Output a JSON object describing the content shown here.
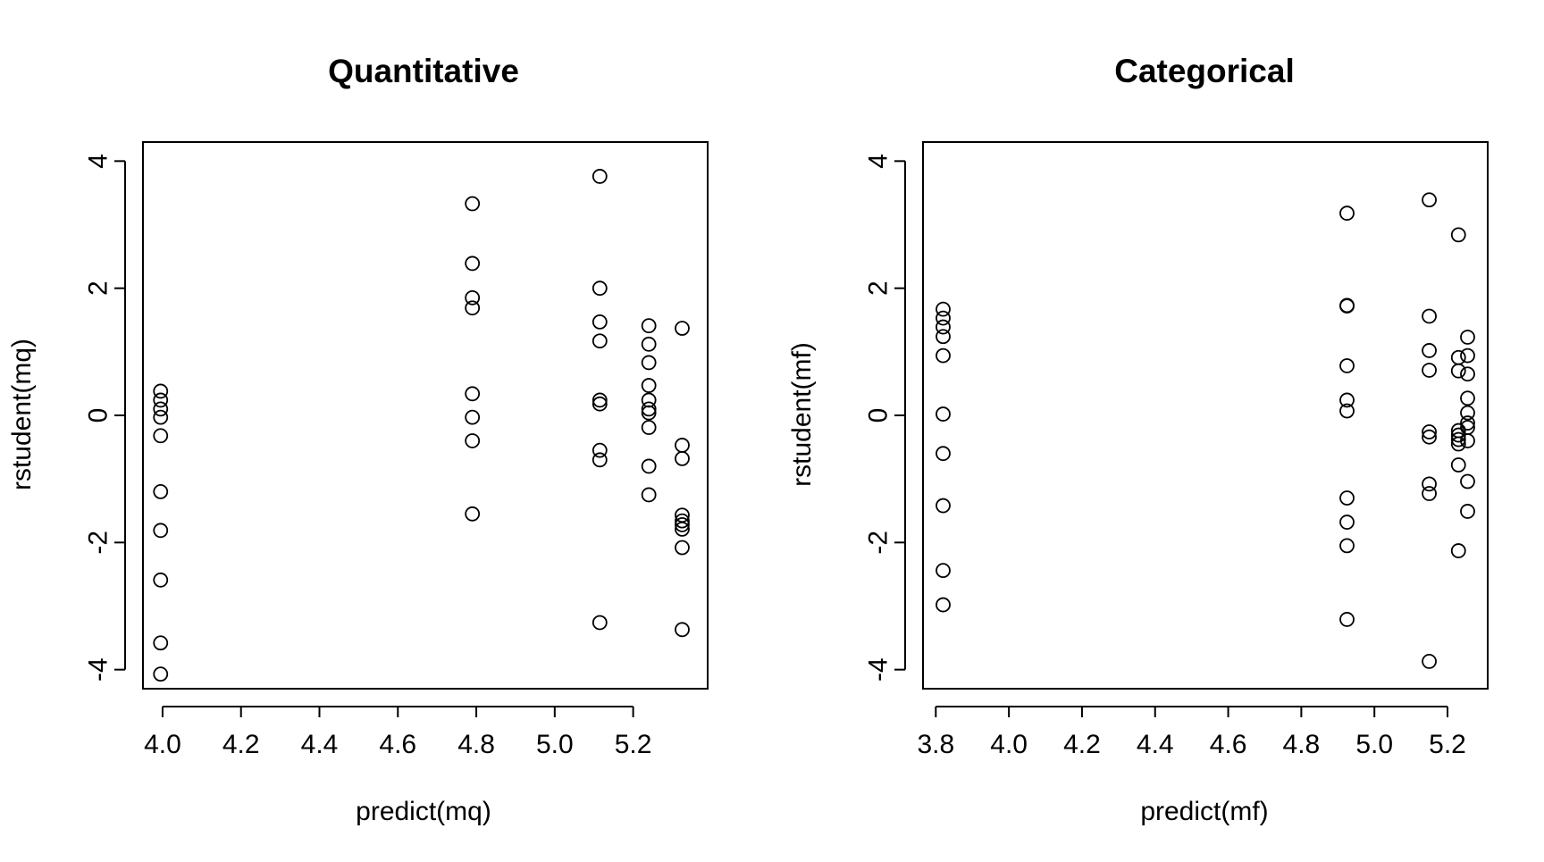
{
  "chart_data": [
    {
      "type": "scatter",
      "title": "Quantitative",
      "xlabel": "predict(mq)",
      "ylabel": "rstudent(mq)",
      "xlim": [
        3.95,
        5.39
      ],
      "ylim": [
        -4.3,
        4.3
      ],
      "xticks": [
        4.0,
        4.2,
        4.4,
        4.6,
        4.8,
        5.0,
        5.2
      ],
      "xtick_labels": [
        "4.0",
        "4.2",
        "4.4",
        "4.6",
        "4.8",
        "5.0",
        "5.2"
      ],
      "yticks": [
        -4,
        -2,
        0,
        2,
        4
      ],
      "ytick_labels": [
        "-4",
        "-2",
        "0",
        "2",
        "4"
      ],
      "grid": false,
      "legend": "none",
      "marker": "open-circle",
      "points": [
        {
          "x": 3.995,
          "y": 0.38
        },
        {
          "x": 3.995,
          "y": 0.24
        },
        {
          "x": 3.995,
          "y": 0.1
        },
        {
          "x": 3.995,
          "y": -0.03
        },
        {
          "x": 3.995,
          "y": -0.32
        },
        {
          "x": 3.995,
          "y": -1.2
        },
        {
          "x": 3.995,
          "y": -1.81
        },
        {
          "x": 3.995,
          "y": -2.59
        },
        {
          "x": 3.995,
          "y": -3.58
        },
        {
          "x": 3.995,
          "y": -4.07
        },
        {
          "x": 4.79,
          "y": 3.33
        },
        {
          "x": 4.79,
          "y": 2.39
        },
        {
          "x": 4.79,
          "y": 1.85
        },
        {
          "x": 4.79,
          "y": 1.69
        },
        {
          "x": 4.79,
          "y": 0.34
        },
        {
          "x": 4.79,
          "y": -0.03
        },
        {
          "x": 4.79,
          "y": -0.4
        },
        {
          "x": 4.79,
          "y": -1.55
        },
        {
          "x": 5.115,
          "y": 3.76
        },
        {
          "x": 5.115,
          "y": 2.0
        },
        {
          "x": 5.115,
          "y": 1.47
        },
        {
          "x": 5.115,
          "y": 1.17
        },
        {
          "x": 5.115,
          "y": 0.24
        },
        {
          "x": 5.115,
          "y": 0.18
        },
        {
          "x": 5.115,
          "y": -0.55
        },
        {
          "x": 5.115,
          "y": -0.7
        },
        {
          "x": 5.115,
          "y": -3.26
        },
        {
          "x": 5.24,
          "y": 1.41
        },
        {
          "x": 5.24,
          "y": 1.12
        },
        {
          "x": 5.24,
          "y": 0.83
        },
        {
          "x": 5.24,
          "y": 0.47
        },
        {
          "x": 5.24,
          "y": 0.24
        },
        {
          "x": 5.24,
          "y": 0.1
        },
        {
          "x": 5.24,
          "y": 0.04
        },
        {
          "x": 5.24,
          "y": -0.19
        },
        {
          "x": 5.24,
          "y": -0.8
        },
        {
          "x": 5.24,
          "y": -1.25
        },
        {
          "x": 5.325,
          "y": 1.37
        },
        {
          "x": 5.325,
          "y": -0.47
        },
        {
          "x": 5.325,
          "y": -0.68
        },
        {
          "x": 5.325,
          "y": -1.57
        },
        {
          "x": 5.325,
          "y": -1.66
        },
        {
          "x": 5.325,
          "y": -1.72
        },
        {
          "x": 5.325,
          "y": -1.79
        },
        {
          "x": 5.325,
          "y": -2.08
        },
        {
          "x": 5.325,
          "y": -3.37
        }
      ]
    },
    {
      "type": "scatter",
      "title": "Categorical",
      "xlabel": "predict(mf)",
      "ylabel": "rstudent(mf)",
      "xlim": [
        3.765,
        5.31
      ],
      "ylim": [
        -4.3,
        4.3
      ],
      "xticks": [
        3.8,
        4.0,
        4.2,
        4.4,
        4.6,
        4.8,
        5.0,
        5.2
      ],
      "xtick_labels": [
        "3.8",
        "4.0",
        "4.2",
        "4.4",
        "4.6",
        "4.8",
        "5.0",
        "5.2"
      ],
      "yticks": [
        -4,
        -2,
        0,
        2,
        4
      ],
      "ytick_labels": [
        "-4",
        "-2",
        "0",
        "2",
        "4"
      ],
      "grid": false,
      "legend": "none",
      "marker": "open-circle",
      "points": [
        {
          "x": 3.82,
          "y": 1.67
        },
        {
          "x": 3.82,
          "y": 1.53
        },
        {
          "x": 3.82,
          "y": 1.39
        },
        {
          "x": 3.82,
          "y": 1.24
        },
        {
          "x": 3.82,
          "y": 0.94
        },
        {
          "x": 3.82,
          "y": 0.02
        },
        {
          "x": 3.82,
          "y": -0.6
        },
        {
          "x": 3.82,
          "y": -1.42
        },
        {
          "x": 3.82,
          "y": -2.44
        },
        {
          "x": 3.82,
          "y": -2.98
        },
        {
          "x": 4.925,
          "y": 3.18
        },
        {
          "x": 4.925,
          "y": 1.73
        },
        {
          "x": 4.925,
          "y": 1.72
        },
        {
          "x": 4.925,
          "y": 0.78
        },
        {
          "x": 4.925,
          "y": 0.24
        },
        {
          "x": 4.925,
          "y": 0.07
        },
        {
          "x": 4.925,
          "y": -1.3
        },
        {
          "x": 4.925,
          "y": -1.68
        },
        {
          "x": 4.925,
          "y": -2.05
        },
        {
          "x": 4.925,
          "y": -3.21
        },
        {
          "x": 5.15,
          "y": 3.39
        },
        {
          "x": 5.15,
          "y": 1.56
        },
        {
          "x": 5.15,
          "y": 1.02
        },
        {
          "x": 5.15,
          "y": 0.71
        },
        {
          "x": 5.15,
          "y": -0.26
        },
        {
          "x": 5.15,
          "y": -0.34
        },
        {
          "x": 5.15,
          "y": -1.08
        },
        {
          "x": 5.15,
          "y": -1.23
        },
        {
          "x": 5.15,
          "y": -3.87
        },
        {
          "x": 5.23,
          "y": 2.84
        },
        {
          "x": 5.23,
          "y": 0.91
        },
        {
          "x": 5.23,
          "y": 0.7
        },
        {
          "x": 5.23,
          "y": -0.24
        },
        {
          "x": 5.23,
          "y": -0.31
        },
        {
          "x": 5.23,
          "y": -0.38
        },
        {
          "x": 5.23,
          "y": -0.45
        },
        {
          "x": 5.23,
          "y": -0.78
        },
        {
          "x": 5.23,
          "y": -2.13
        },
        {
          "x": 5.255,
          "y": 1.23
        },
        {
          "x": 5.255,
          "y": 0.94
        },
        {
          "x": 5.255,
          "y": 0.65
        },
        {
          "x": 5.255,
          "y": 0.27
        },
        {
          "x": 5.255,
          "y": 0.04
        },
        {
          "x": 5.255,
          "y": -0.12
        },
        {
          "x": 5.255,
          "y": -0.19
        },
        {
          "x": 5.255,
          "y": -0.4
        },
        {
          "x": 5.255,
          "y": -1.04
        },
        {
          "x": 5.255,
          "y": -1.51
        }
      ]
    }
  ]
}
